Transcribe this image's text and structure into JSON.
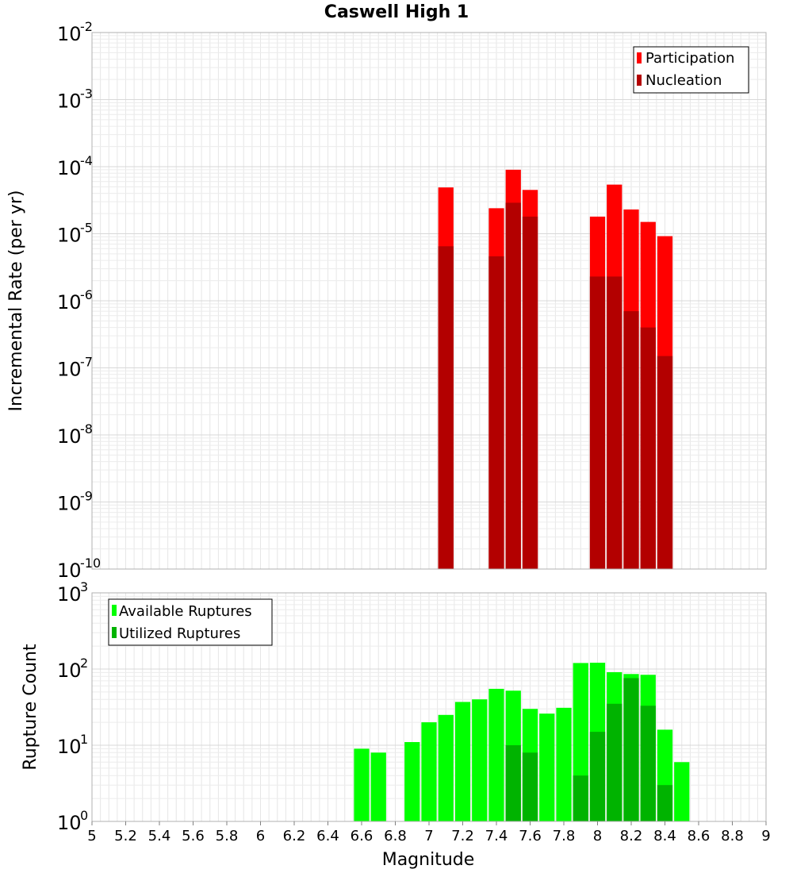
{
  "chart_data": [
    {
      "type": "bar",
      "title": "Caswell High 1",
      "ylabel": "Incremental Rate (per yr)",
      "xlabel": "",
      "y_scale": "log",
      "ylim_exponents": [
        -10,
        -2
      ],
      "xlim": [
        5,
        9
      ],
      "grid": true,
      "legend_position": "top-right",
      "series": [
        {
          "name": "Participation",
          "color": "#ff0000",
          "points": [
            {
              "x": 7.1,
              "y": 4.9e-05
            },
            {
              "x": 7.4,
              "y": 2.4e-05
            },
            {
              "x": 7.5,
              "y": 9e-05
            },
            {
              "x": 7.6,
              "y": 4.5e-05
            },
            {
              "x": 8.0,
              "y": 1.8e-05
            },
            {
              "x": 8.1,
              "y": 5.4e-05
            },
            {
              "x": 8.2,
              "y": 2.3e-05
            },
            {
              "x": 8.3,
              "y": 1.5e-05
            },
            {
              "x": 8.4,
              "y": 9.2e-06
            }
          ]
        },
        {
          "name": "Nucleation",
          "color": "#b30000",
          "points": [
            {
              "x": 7.1,
              "y": 6.5e-06
            },
            {
              "x": 7.4,
              "y": 4.6e-06
            },
            {
              "x": 7.5,
              "y": 2.9e-05
            },
            {
              "x": 7.6,
              "y": 1.8e-05
            },
            {
              "x": 8.0,
              "y": 2.3e-06
            },
            {
              "x": 8.1,
              "y": 2.3e-06
            },
            {
              "x": 8.2,
              "y": 7e-07
            },
            {
              "x": 8.3,
              "y": 4e-07
            },
            {
              "x": 8.4,
              "y": 1.5e-07
            }
          ]
        }
      ]
    },
    {
      "type": "bar",
      "title": "",
      "ylabel": "Rupture Count",
      "xlabel": "Magnitude",
      "y_scale": "log",
      "ylim_exponents": [
        0,
        3
      ],
      "xlim": [
        5,
        9
      ],
      "xticks": [
        "5",
        "5.2",
        "5.4",
        "5.6",
        "5.8",
        "6",
        "6.2",
        "6.4",
        "6.6",
        "6.8",
        "7",
        "7.2",
        "7.4",
        "7.6",
        "7.8",
        "8",
        "8.2",
        "8.4",
        "8.6",
        "8.8",
        "9"
      ],
      "grid": true,
      "legend_position": "top-left",
      "series": [
        {
          "name": "Available Ruptures",
          "color": "#00ff00",
          "points": [
            {
              "x": 6.6,
              "y": 9
            },
            {
              "x": 6.7,
              "y": 8
            },
            {
              "x": 6.9,
              "y": 11
            },
            {
              "x": 7.0,
              "y": 20
            },
            {
              "x": 7.1,
              "y": 25
            },
            {
              "x": 7.2,
              "y": 37
            },
            {
              "x": 7.3,
              "y": 40
            },
            {
              "x": 7.4,
              "y": 55
            },
            {
              "x": 7.5,
              "y": 52
            },
            {
              "x": 7.6,
              "y": 30
            },
            {
              "x": 7.7,
              "y": 26
            },
            {
              "x": 7.8,
              "y": 31
            },
            {
              "x": 7.9,
              "y": 120
            },
            {
              "x": 8.0,
              "y": 121
            },
            {
              "x": 8.1,
              "y": 91
            },
            {
              "x": 8.2,
              "y": 86
            },
            {
              "x": 8.3,
              "y": 84
            },
            {
              "x": 8.4,
              "y": 16
            },
            {
              "x": 8.5,
              "y": 6
            }
          ]
        },
        {
          "name": "Utilized Ruptures",
          "color": "#00b300",
          "points": [
            {
              "x": 7.1,
              "y": 1
            },
            {
              "x": 7.4,
              "y": 1
            },
            {
              "x": 7.5,
              "y": 10
            },
            {
              "x": 7.6,
              "y": 8
            },
            {
              "x": 7.9,
              "y": 4
            },
            {
              "x": 8.0,
              "y": 15
            },
            {
              "x": 8.1,
              "y": 35
            },
            {
              "x": 8.2,
              "y": 76
            },
            {
              "x": 8.3,
              "y": 33
            },
            {
              "x": 8.4,
              "y": 3
            }
          ]
        }
      ]
    }
  ]
}
